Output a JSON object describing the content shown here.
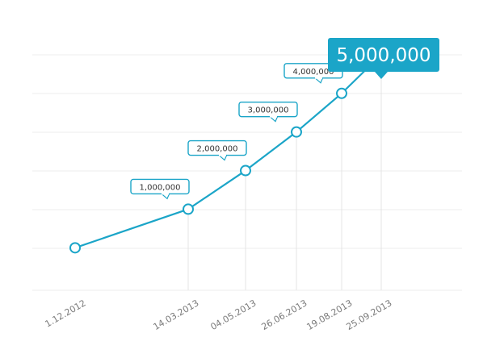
{
  "chart_data": {
    "type": "line",
    "x": [
      "1.12.2012",
      "14.03.2013",
      "04.05.2013",
      "26.06.2013",
      "19.08.2013",
      "25.09.2013"
    ],
    "values": [
      0,
      1000000,
      2000000,
      3000000,
      4000000,
      5000000
    ],
    "point_labels": [
      "",
      "1,000,000",
      "2,000,000",
      "3,000,000",
      "4,000,000",
      "5,000,000"
    ],
    "highlight_index": 5,
    "ylim": [
      -1100000,
      6000000
    ],
    "grid": true,
    "colors": {
      "line": "#1ba5c8",
      "point_stroke": "#1ba5c8",
      "highlight_fill": "#c9eaf3",
      "callout_border": "#1ba5c8",
      "highlight_callout_bg": "#1ba5c8"
    }
  }
}
